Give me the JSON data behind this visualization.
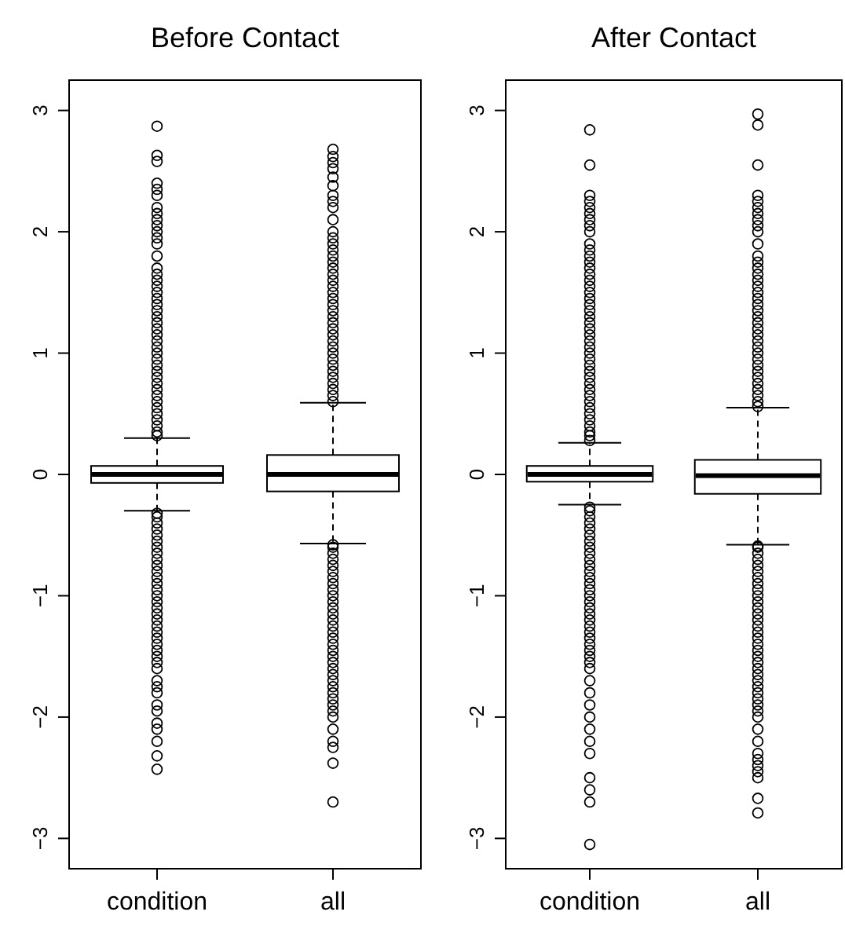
{
  "chart_data": [
    {
      "type": "box",
      "title": "Before Contact",
      "categories": [
        "condition",
        "all"
      ],
      "ylim": [
        -3.25,
        3.25
      ],
      "yticks": [
        -3,
        -2,
        -1,
        0,
        1,
        2,
        3
      ],
      "boxes": [
        {
          "low": -0.3,
          "q1": -0.07,
          "median": 0,
          "q3": 0.07,
          "high": 0.3,
          "outliers": [
            0.32,
            0.35,
            0.4,
            0.45,
            0.5,
            0.55,
            0.6,
            0.65,
            0.7,
            0.75,
            0.8,
            0.85,
            0.9,
            0.95,
            1.0,
            1.05,
            1.1,
            1.15,
            1.2,
            1.25,
            1.3,
            1.35,
            1.4,
            1.45,
            1.5,
            1.55,
            1.6,
            1.65,
            1.7,
            1.8,
            1.9,
            1.95,
            2.0,
            2.05,
            2.1,
            2.15,
            2.2,
            2.3,
            2.35,
            2.4,
            2.58,
            2.63,
            2.87,
            -0.32,
            -0.35,
            -0.4,
            -0.45,
            -0.5,
            -0.55,
            -0.6,
            -0.65,
            -0.7,
            -0.75,
            -0.8,
            -0.85,
            -0.9,
            -0.95,
            -1.0,
            -1.05,
            -1.1,
            -1.15,
            -1.2,
            -1.25,
            -1.3,
            -1.35,
            -1.4,
            -1.45,
            -1.5,
            -1.55,
            -1.6,
            -1.7,
            -1.75,
            -1.8,
            -1.9,
            -1.95,
            -2.05,
            -2.1,
            -2.2,
            -2.32,
            -2.43
          ]
        },
        {
          "low": -0.57,
          "q1": -0.14,
          "median": 0,
          "q3": 0.16,
          "high": 0.59,
          "outliers": [
            0.6,
            0.65,
            0.7,
            0.75,
            0.8,
            0.85,
            0.9,
            0.95,
            1.0,
            1.05,
            1.1,
            1.15,
            1.2,
            1.25,
            1.3,
            1.35,
            1.4,
            1.45,
            1.5,
            1.55,
            1.6,
            1.65,
            1.7,
            1.75,
            1.8,
            1.85,
            1.9,
            1.95,
            2.0,
            2.1,
            2.2,
            2.25,
            2.3,
            2.38,
            2.45,
            2.52,
            2.57,
            2.62,
            2.68,
            -0.58,
            -0.6,
            -0.65,
            -0.7,
            -0.75,
            -0.8,
            -0.85,
            -0.9,
            -0.95,
            -1.0,
            -1.05,
            -1.1,
            -1.15,
            -1.2,
            -1.25,
            -1.3,
            -1.35,
            -1.4,
            -1.45,
            -1.5,
            -1.55,
            -1.6,
            -1.65,
            -1.7,
            -1.75,
            -1.8,
            -1.85,
            -1.9,
            -1.95,
            -2.0,
            -2.1,
            -2.2,
            -2.25,
            -2.38,
            -2.7
          ]
        }
      ]
    },
    {
      "type": "box",
      "title": "After Contact",
      "categories": [
        "condition",
        "all"
      ],
      "ylim": [
        -3.25,
        3.25
      ],
      "yticks": [
        -3,
        -2,
        -1,
        0,
        1,
        2,
        3
      ],
      "boxes": [
        {
          "low": -0.25,
          "q1": -0.06,
          "median": 0,
          "q3": 0.07,
          "high": 0.26,
          "outliers": [
            0.28,
            0.32,
            0.35,
            0.4,
            0.45,
            0.5,
            0.55,
            0.6,
            0.65,
            0.7,
            0.75,
            0.8,
            0.85,
            0.9,
            0.95,
            1.0,
            1.05,
            1.1,
            1.15,
            1.2,
            1.25,
            1.3,
            1.35,
            1.4,
            1.45,
            1.5,
            1.55,
            1.6,
            1.65,
            1.7,
            1.75,
            1.8,
            1.85,
            1.9,
            2.0,
            2.05,
            2.1,
            2.15,
            2.2,
            2.25,
            2.3,
            2.55,
            2.84,
            -0.27,
            -0.3,
            -0.35,
            -0.4,
            -0.45,
            -0.5,
            -0.55,
            -0.6,
            -0.65,
            -0.7,
            -0.75,
            -0.8,
            -0.85,
            -0.9,
            -0.95,
            -1.0,
            -1.05,
            -1.1,
            -1.15,
            -1.2,
            -1.25,
            -1.3,
            -1.35,
            -1.4,
            -1.45,
            -1.5,
            -1.55,
            -1.6,
            -1.7,
            -1.8,
            -1.9,
            -2.0,
            -2.1,
            -2.2,
            -2.3,
            -2.5,
            -2.6,
            -2.7,
            -3.05
          ]
        },
        {
          "low": -0.58,
          "q1": -0.16,
          "median": -0.01,
          "q3": 0.12,
          "high": 0.55,
          "outliers": [
            0.56,
            0.6,
            0.65,
            0.7,
            0.75,
            0.8,
            0.85,
            0.9,
            0.95,
            1.0,
            1.05,
            1.1,
            1.15,
            1.2,
            1.25,
            1.3,
            1.35,
            1.4,
            1.45,
            1.5,
            1.55,
            1.6,
            1.65,
            1.7,
            1.75,
            1.8,
            1.9,
            2.0,
            2.05,
            2.1,
            2.15,
            2.2,
            2.25,
            2.3,
            2.55,
            2.88,
            2.97,
            -0.59,
            -0.6,
            -0.65,
            -0.7,
            -0.75,
            -0.8,
            -0.85,
            -0.9,
            -0.95,
            -1.0,
            -1.05,
            -1.1,
            -1.15,
            -1.2,
            -1.25,
            -1.3,
            -1.35,
            -1.4,
            -1.45,
            -1.5,
            -1.55,
            -1.6,
            -1.65,
            -1.7,
            -1.75,
            -1.8,
            -1.85,
            -1.9,
            -1.95,
            -2.0,
            -2.1,
            -2.2,
            -2.3,
            -2.35,
            -2.4,
            -2.45,
            -2.5,
            -2.67,
            -2.79
          ]
        }
      ]
    }
  ]
}
